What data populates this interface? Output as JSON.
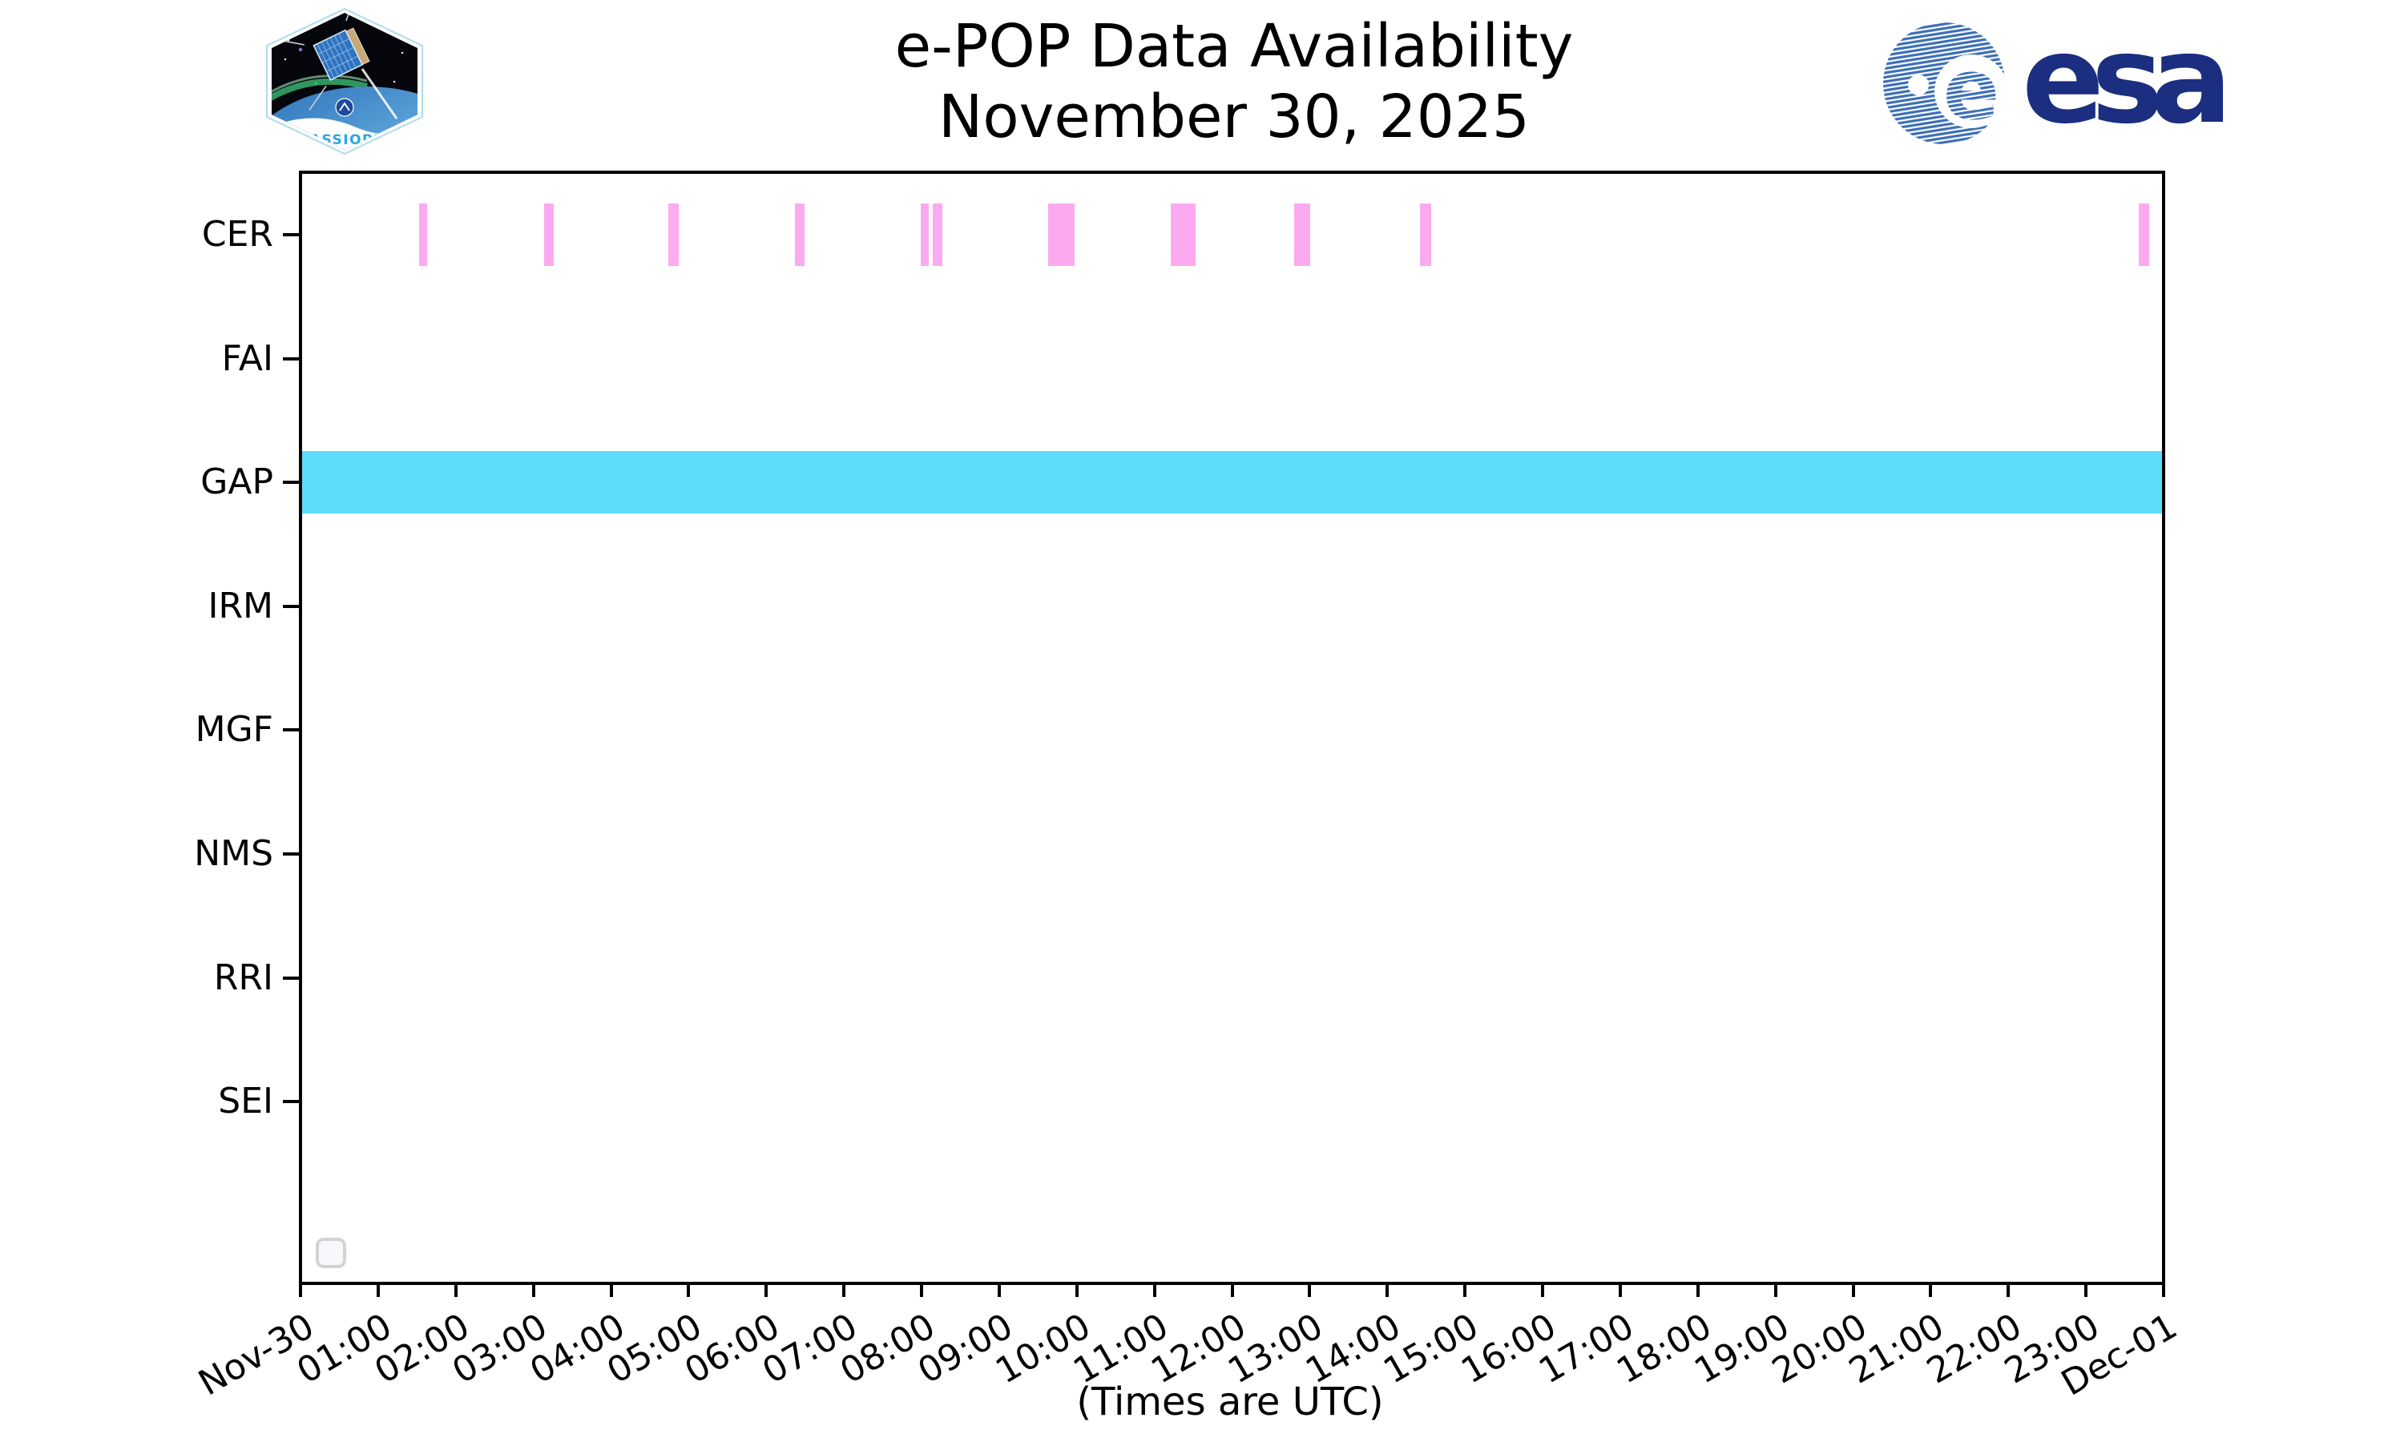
{
  "logos": {
    "cassiope_label": "CASSIOPE",
    "esa_wordmark": "esa"
  },
  "chart_data": {
    "type": "timeline-availability",
    "title": "e-POP Data Availability",
    "subtitle": "November 30, 2025",
    "xlabel": "(Times are UTC)",
    "grid": false,
    "x_axis": {
      "range_hours": [
        0,
        24
      ],
      "tick_interval_hours": 1,
      "tick_labels": [
        "Nov-30",
        "01:00",
        "02:00",
        "03:00",
        "04:00",
        "05:00",
        "06:00",
        "07:00",
        "08:00",
        "09:00",
        "10:00",
        "11:00",
        "12:00",
        "13:00",
        "14:00",
        "15:00",
        "16:00",
        "17:00",
        "18:00",
        "19:00",
        "20:00",
        "21:00",
        "22:00",
        "23:00",
        "Dec-01"
      ],
      "tick_label_rotation_deg": -30
    },
    "y_axis": {
      "instruments": [
        "CER",
        "FAI",
        "GAP",
        "IRM",
        "MGF",
        "NMS",
        "RRI",
        "SEI"
      ]
    },
    "series": [
      {
        "name": "CER",
        "color": "#fcaaf0",
        "intervals": [
          {
            "start": "01:30",
            "end": "01:37",
            "start_h": 1.507,
            "end_h": 1.61
          },
          {
            "start": "03:07",
            "end": "03:15",
            "start_h": 3.123,
            "end_h": 3.252
          },
          {
            "start": "04:43",
            "end": "04:51",
            "start_h": 4.723,
            "end_h": 4.857
          },
          {
            "start": "06:22",
            "end": "06:29",
            "start_h": 6.359,
            "end_h": 6.488
          },
          {
            "start": "07:59",
            "end": "08:05",
            "start_h": 7.982,
            "end_h": 8.085
          },
          {
            "start": "08:08",
            "end": "08:16",
            "start_h": 8.137,
            "end_h": 8.265
          },
          {
            "start": "09:38",
            "end": "09:58",
            "start_h": 9.631,
            "end_h": 9.972
          },
          {
            "start": "11:13",
            "end": "11:32",
            "start_h": 11.211,
            "end_h": 11.531
          },
          {
            "start": "12:48",
            "end": "13:00",
            "start_h": 12.8,
            "end_h": 13.006
          },
          {
            "start": "14:25",
            "end": "14:34",
            "start_h": 14.421,
            "end_h": 14.565
          },
          {
            "start": "23:42",
            "end": "23:50",
            "start_h": 23.7,
            "end_h": 23.834
          }
        ]
      },
      {
        "name": "FAI",
        "color": "#fcaaf0",
        "intervals": []
      },
      {
        "name": "GAP",
        "color": "#5edcfb",
        "intervals": [
          {
            "start": "00:00",
            "end": "24:00",
            "start_h": 0.0,
            "end_h": 24.0
          }
        ]
      },
      {
        "name": "IRM",
        "color": "#fcaaf0",
        "intervals": []
      },
      {
        "name": "MGF",
        "color": "#fcaaf0",
        "intervals": []
      },
      {
        "name": "NMS",
        "color": "#fcaaf0",
        "intervals": []
      },
      {
        "name": "RRI",
        "color": "#fcaaf0",
        "intervals": []
      },
      {
        "name": "SEI",
        "color": "#fcaaf0",
        "intervals": []
      }
    ],
    "colors": {
      "available_pink": "#fcaaf0",
      "gap_cyan": "#5edcfb",
      "axis": "#000000",
      "legend_border": "#d3d3d3",
      "legend_fill": "#f7f8fc"
    },
    "legend": {
      "frame_visible": true,
      "position": "lower-left",
      "entries": []
    }
  }
}
